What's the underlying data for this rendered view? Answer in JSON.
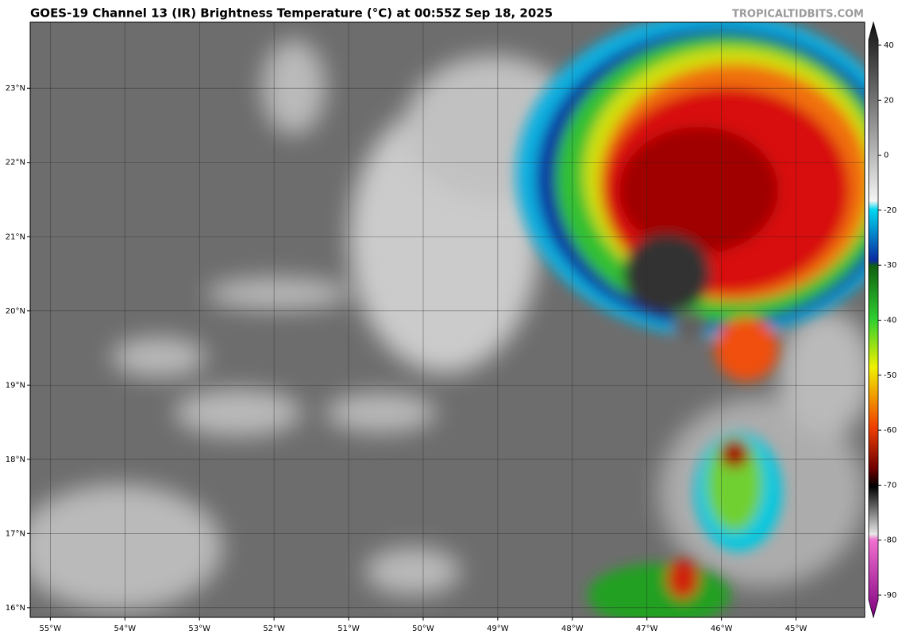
{
  "header": {
    "title": "GOES-19 Channel 13 (IR) Brightness Temperature (°C) at 00:55Z Sep 18, 2025",
    "watermark": "TROPICALTIDBITS.COM"
  },
  "map": {
    "lon_range": [
      -55.27,
      -44.08
    ],
    "lat_range": [
      15.87,
      23.89
    ],
    "lat_ticks": [
      {
        "value": 23,
        "label": "23°N"
      },
      {
        "value": 22,
        "label": "22°N"
      },
      {
        "value": 21,
        "label": "21°N"
      },
      {
        "value": 20,
        "label": "20°N"
      },
      {
        "value": 19,
        "label": "19°N"
      },
      {
        "value": 18,
        "label": "18°N"
      },
      {
        "value": 17,
        "label": "17°N"
      },
      {
        "value": 16,
        "label": "16°N"
      }
    ],
    "lon_ticks": [
      {
        "value": -55,
        "label": "55°W"
      },
      {
        "value": -54,
        "label": "54°W"
      },
      {
        "value": -53,
        "label": "53°W"
      },
      {
        "value": -52,
        "label": "52°W"
      },
      {
        "value": -51,
        "label": "51°W"
      },
      {
        "value": -50,
        "label": "50°W"
      },
      {
        "value": -49,
        "label": "49°W"
      },
      {
        "value": -48,
        "label": "48°W"
      },
      {
        "value": -47,
        "label": "47°W"
      },
      {
        "value": -46,
        "label": "46°W"
      },
      {
        "value": -45,
        "label": "45°W"
      }
    ]
  },
  "colorbar": {
    "ticks": [
      40,
      20,
      0,
      -20,
      -30,
      -40,
      -50,
      -60,
      -70,
      -80,
      -90
    ]
  }
}
